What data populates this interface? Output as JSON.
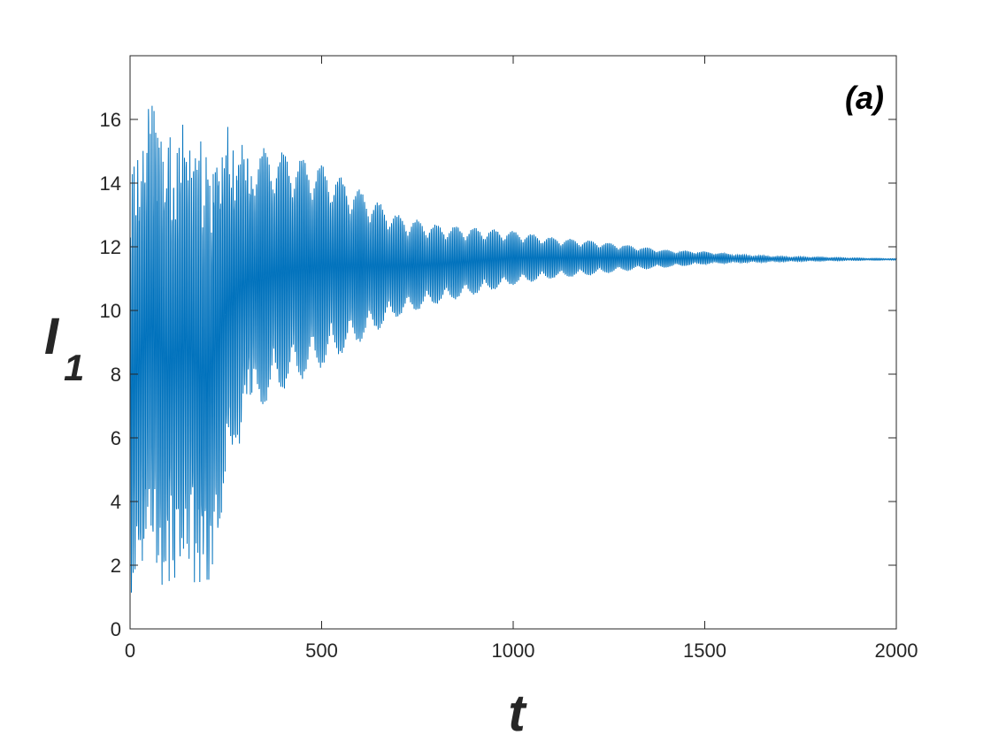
{
  "chart_data": {
    "type": "line",
    "panel_label": "(a)",
    "xlabel": "t",
    "ylabel_main": "I",
    "ylabel_sub": "1",
    "xlim": [
      0,
      2000
    ],
    "ylim": [
      0,
      18
    ],
    "xticks": [
      0,
      500,
      1000,
      1500,
      2000
    ],
    "yticks": [
      0,
      2,
      4,
      6,
      8,
      10,
      12,
      14,
      16
    ],
    "x_tick_labels": [
      "0",
      "500",
      "1000",
      "1500",
      "2000"
    ],
    "y_tick_labels": [
      "0",
      "2",
      "4",
      "6",
      "8",
      "10",
      "12",
      "14",
      "16"
    ],
    "grid": false,
    "series_color": "#0072BD",
    "series": [
      {
        "equilibrium": 11.6,
        "max_value": 17.5,
        "min_value": 0.1,
        "description": "damped oscillation converging to equilibrium",
        "envelope": {
          "t": [
            0,
            50,
            100,
            150,
            200,
            250,
            300,
            400,
            500,
            600,
            700,
            800,
            900,
            1000,
            1100,
            1200,
            1300,
            1400,
            1500,
            1600,
            1700,
            1800,
            1900,
            2000
          ],
          "upper": [
            14.7,
            17.0,
            15.8,
            15.9,
            15.5,
            16.2,
            15.2,
            15.0,
            14.6,
            13.8,
            13.0,
            12.7,
            12.6,
            12.5,
            12.3,
            12.2,
            12.05,
            11.9,
            11.85,
            11.75,
            11.7,
            11.68,
            11.65,
            11.63
          ],
          "lower": [
            0.2,
            2.0,
            1.0,
            2.0,
            0.1,
            4.0,
            6.5,
            7.5,
            8.2,
            9.0,
            9.8,
            10.2,
            10.5,
            10.8,
            11.0,
            11.1,
            11.25,
            11.35,
            11.45,
            11.5,
            11.53,
            11.55,
            11.57,
            11.58
          ]
        }
      }
    ]
  }
}
